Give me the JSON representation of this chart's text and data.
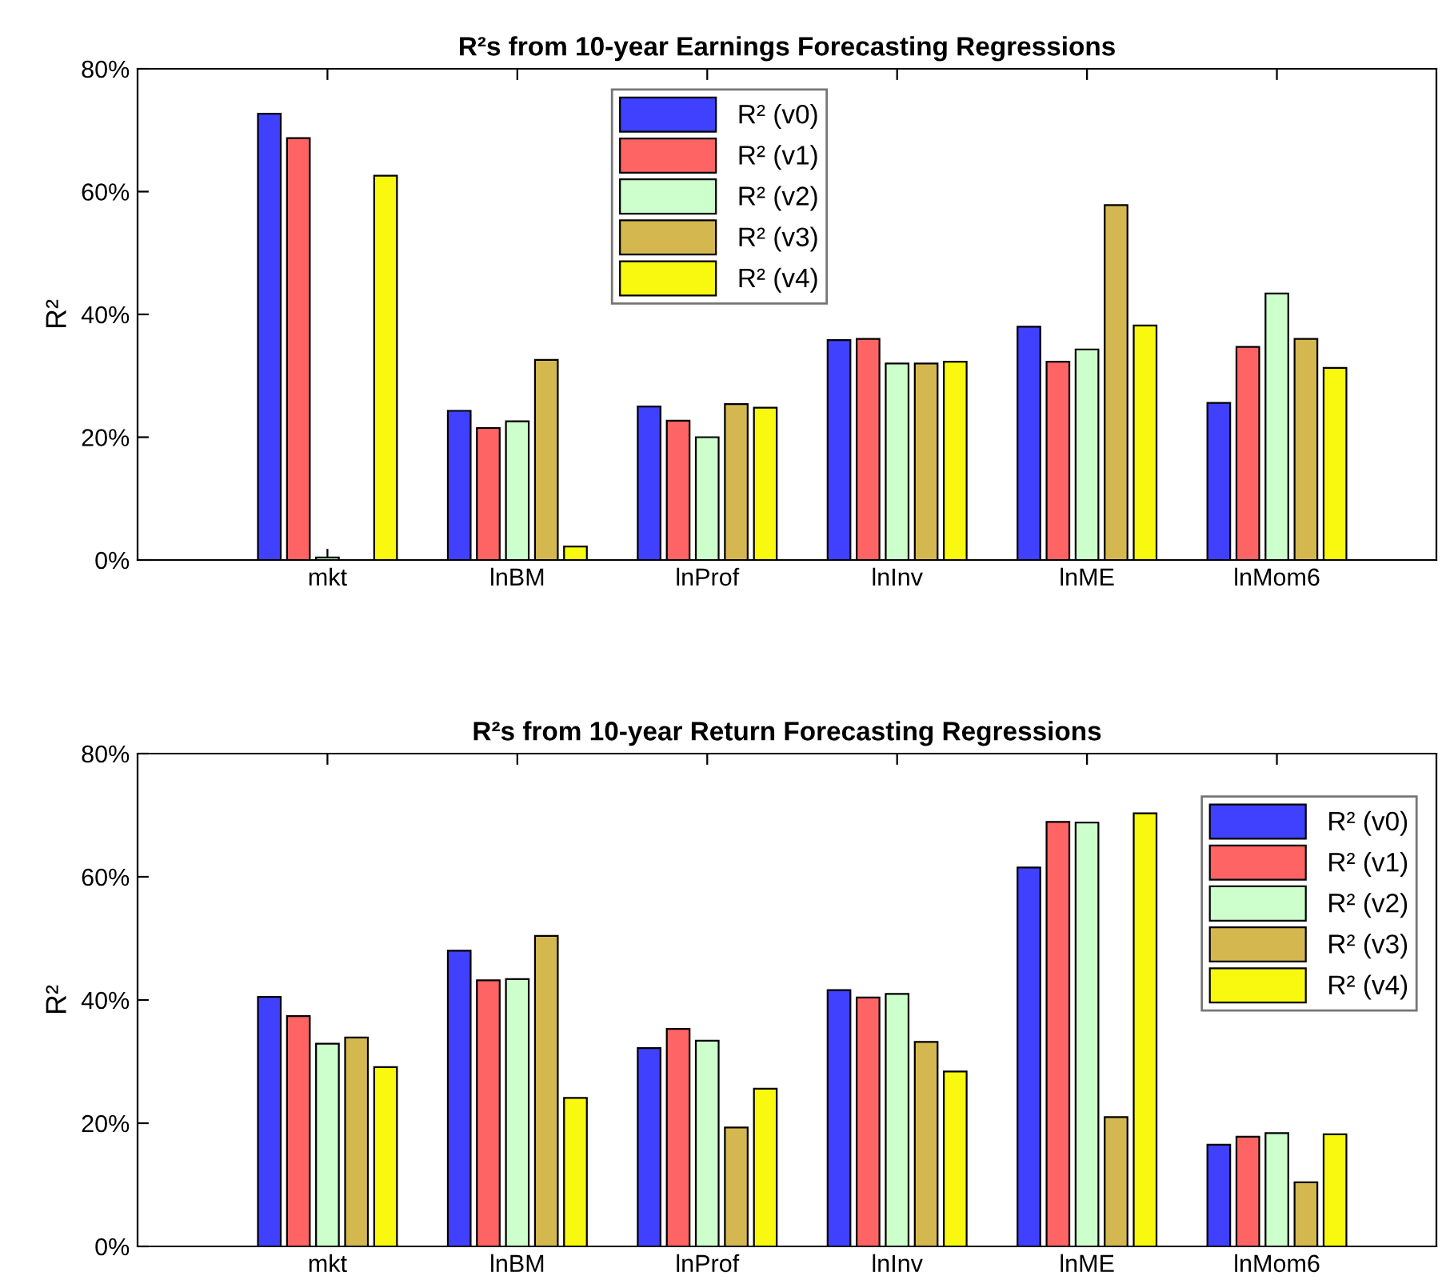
{
  "chart_data": [
    {
      "type": "bar",
      "title": "R²s from 10-year Earnings Forecasting Regressions",
      "ylabel": "R²",
      "categories": [
        "mkt",
        "lnBM",
        "lnProf",
        "lnInv",
        "lnME",
        "lnMom6"
      ],
      "ylim": [
        0,
        80
      ],
      "yticks": [
        {
          "value": 0,
          "label": "0%"
        },
        {
          "value": 20,
          "label": "20%"
        },
        {
          "value": 40,
          "label": "40%"
        },
        {
          "value": 60,
          "label": "60%"
        },
        {
          "value": 80,
          "label": "80%"
        }
      ],
      "grid": false,
      "legend": "top",
      "series": [
        {
          "name": "R² (v0)",
          "color": "#4040ff",
          "values": [
            72.7,
            24.3,
            25.0,
            35.8,
            38.0,
            25.6
          ]
        },
        {
          "name": "R² (v1)",
          "color": "#ff6464",
          "values": [
            68.7,
            21.5,
            22.7,
            36.0,
            32.3,
            34.7
          ]
        },
        {
          "name": "R² (v2)",
          "color": "#ccffcc",
          "values": [
            0.4,
            22.6,
            20.0,
            32.0,
            34.3,
            43.4
          ]
        },
        {
          "name": "R² (v3)",
          "color": "#d4b84f",
          "values": [
            null,
            32.6,
            25.4,
            32.0,
            57.8,
            36.0
          ]
        },
        {
          "name": "R² (v4)",
          "color": "#f9f90f",
          "values": [
            62.6,
            2.2,
            24.8,
            32.3,
            38.2,
            31.3
          ]
        }
      ]
    },
    {
      "type": "bar",
      "title": "R²s from 10-year Return Forecasting Regressions",
      "ylabel": "R²",
      "categories": [
        "mkt",
        "lnBM",
        "lnProf",
        "lnInv",
        "lnME",
        "lnMom6"
      ],
      "ylim": [
        0,
        80
      ],
      "yticks": [
        {
          "value": 0,
          "label": "0%"
        },
        {
          "value": 20,
          "label": "20%"
        },
        {
          "value": 40,
          "label": "40%"
        },
        {
          "value": 60,
          "label": "60%"
        },
        {
          "value": 80,
          "label": "80%"
        }
      ],
      "grid": false,
      "legend": "top right",
      "series": [
        {
          "name": "R² (v0)",
          "color": "#4040ff",
          "values": [
            40.5,
            48.0,
            32.2,
            41.6,
            61.5,
            16.5
          ]
        },
        {
          "name": "R² (v1)",
          "color": "#ff6464",
          "values": [
            37.4,
            43.2,
            35.3,
            40.4,
            68.9,
            17.8
          ]
        },
        {
          "name": "R² (v2)",
          "color": "#ccffcc",
          "values": [
            32.9,
            43.4,
            33.4,
            41.0,
            68.8,
            18.4
          ]
        },
        {
          "name": "R² (v3)",
          "color": "#d4b84f",
          "values": [
            33.9,
            50.4,
            19.3,
            33.2,
            21.0,
            10.4
          ]
        },
        {
          "name": "R² (v4)",
          "color": "#f9f90f",
          "values": [
            29.1,
            24.1,
            25.6,
            28.4,
            70.3,
            18.2
          ]
        }
      ]
    }
  ]
}
